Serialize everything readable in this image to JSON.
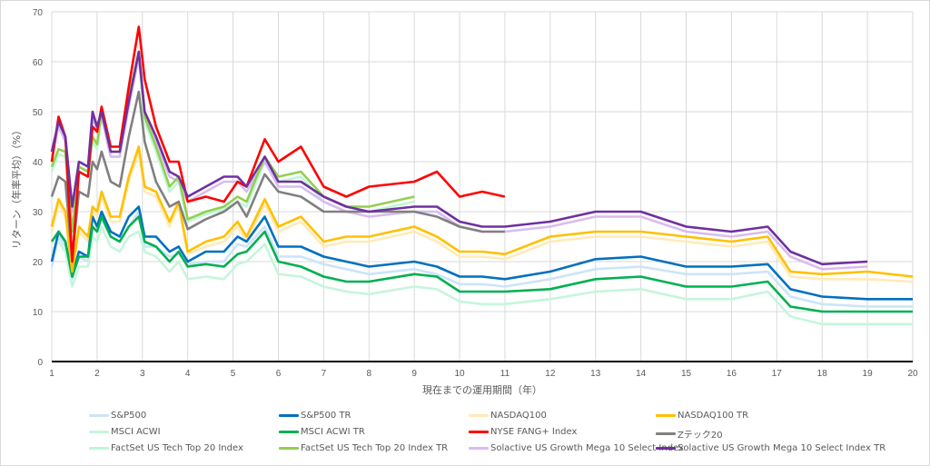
{
  "chart_data": {
    "type": "line",
    "title": "",
    "xlabel": "現在までの運用期間（年）",
    "ylabel": "リターン（年率平均）（%）",
    "xlim": [
      1,
      20
    ],
    "ylim": [
      0,
      70
    ],
    "xticks": [
      1,
      2,
      3,
      4,
      5,
      6,
      7,
      8,
      9,
      10,
      11,
      12,
      13,
      14,
      15,
      16,
      17,
      18,
      19,
      20
    ],
    "yticks": [
      0,
      10,
      20,
      30,
      40,
      50,
      60,
      70
    ],
    "grid": true,
    "legend_position": "bottom",
    "x": [
      1,
      1.15,
      1.3,
      1.45,
      1.6,
      1.8,
      1.9,
      2.0,
      2.1,
      2.3,
      2.5,
      2.7,
      2.92,
      3.05,
      3.3,
      3.6,
      3.8,
      4.0,
      4.4,
      4.8,
      5.1,
      5.3,
      5.7,
      6.0,
      6.5,
      7.0,
      7.5,
      8.0,
      9.0,
      9.5,
      10.0,
      10.5,
      11.0,
      12.0,
      13.0,
      14.0,
      15.0,
      16.0,
      16.8,
      17.3,
      18.0,
      19.0,
      20.0
    ],
    "series": [
      {
        "name": "S&P500",
        "color": "#cce4fa",
        "values": [
          19,
          25,
          23,
          16.5,
          21,
          20,
          27,
          26,
          28.5,
          25,
          24,
          27,
          30,
          23,
          23,
          21,
          21.5,
          19.5,
          20,
          20,
          23.5,
          23,
          27,
          21,
          21,
          19.5,
          18.5,
          17.5,
          18.5,
          17.5,
          15.5,
          15.5,
          15,
          16.5,
          18.5,
          19,
          17.5,
          17.5,
          18,
          13,
          11.5,
          11,
          11
        ]
      },
      {
        "name": "MSCI ACWI",
        "color": "#c6f5dc",
        "values": [
          22,
          24,
          22,
          15,
          19,
          19,
          25,
          24,
          27,
          23,
          22,
          25,
          26,
          22,
          21,
          18,
          20,
          16.5,
          17,
          16.5,
          19.5,
          20,
          23.5,
          17.5,
          17,
          15,
          14,
          13.5,
          15,
          14.5,
          12,
          11.5,
          11.5,
          12.5,
          14,
          14.5,
          12.5,
          12.5,
          14,
          9,
          7.5,
          7.5,
          7.5
        ]
      },
      {
        "name": "FactSet US Tech Top 20 Index",
        "color": "#bff7d6",
        "values": [
          38,
          41.5,
          41,
          25,
          38,
          37,
          44,
          42.5,
          49,
          41,
          41,
          52,
          61,
          48,
          42,
          34,
          36,
          28,
          29.5,
          30.5,
          32,
          31,
          40,
          36,
          37,
          32,
          30,
          30,
          32,
          null,
          null,
          null,
          null,
          null,
          null,
          null,
          null,
          null,
          null,
          null,
          null,
          null,
          null
        ]
      },
      {
        "name": "NASDAQ100",
        "color": "#ffeab8",
        "values": [
          26,
          31.5,
          29,
          17.5,
          26,
          24,
          30,
          29,
          33,
          28,
          28,
          36,
          42,
          34,
          33,
          27,
          31,
          21.5,
          23,
          24,
          27,
          24,
          31.5,
          26,
          28,
          23,
          24,
          24,
          26,
          24,
          21,
          21,
          20.5,
          24,
          25,
          25,
          24,
          23,
          24,
          17,
          16.5,
          16.5,
          16
        ]
      },
      {
        "name": "Solactive US Growth Mega 10 Select Index",
        "color": "#d8bcef",
        "values": [
          41,
          47,
          44,
          30,
          39,
          38,
          49,
          46,
          49,
          41,
          41,
          51,
          61,
          49,
          44,
          37,
          36,
          32,
          34,
          36,
          36,
          34,
          40,
          35,
          35,
          32,
          30,
          29,
          30,
          30,
          27,
          26,
          26,
          27,
          29,
          29,
          26,
          25,
          26,
          21,
          18.5,
          19,
          null
        ]
      },
      {
        "name": "S&P500 TR",
        "color": "#0070c0",
        "values": [
          20,
          26,
          24,
          17,
          22,
          21,
          29,
          27,
          30,
          26,
          25,
          29,
          31,
          25,
          25,
          22,
          23,
          20,
          22,
          22,
          25,
          24,
          29,
          23,
          23,
          21,
          20,
          19,
          20,
          19,
          17,
          17,
          16.5,
          18,
          20.5,
          21,
          19,
          19,
          19.5,
          14.5,
          13,
          12.5,
          12.5
        ]
      },
      {
        "name": "MSCI ACWI TR",
        "color": "#00b050",
        "values": [
          24,
          26,
          24,
          17,
          21,
          21,
          27,
          26,
          29,
          25,
          24,
          27,
          29,
          24,
          23,
          20,
          22,
          19,
          19.5,
          19,
          21.5,
          22,
          26,
          20,
          19,
          17,
          16,
          16,
          17.5,
          17,
          14,
          14,
          14,
          14.5,
          16.5,
          17,
          15,
          15,
          16,
          11,
          10,
          10,
          10
        ]
      },
      {
        "name": "NASDAQ100 TR",
        "color": "#ffc000",
        "values": [
          27,
          32.5,
          30,
          18,
          27,
          25,
          31,
          30,
          34,
          29,
          29,
          37,
          43,
          35,
          34,
          28,
          32,
          22,
          24,
          25,
          28,
          25,
          32.5,
          27,
          29,
          24,
          25,
          25,
          27,
          25,
          22,
          22,
          21.5,
          25,
          26,
          26,
          25,
          24,
          25,
          18,
          17.5,
          18,
          17
        ]
      },
      {
        "name": "Zテック20",
        "color": "#808080",
        "values": [
          33,
          37,
          36,
          20.5,
          34,
          33,
          40,
          38.5,
          42,
          36,
          35,
          45,
          54,
          44,
          36,
          31,
          32,
          26.5,
          28.5,
          30,
          32,
          29,
          37.5,
          34,
          33,
          30,
          30,
          30,
          30,
          29,
          27,
          26,
          26,
          null,
          null,
          null,
          null,
          null,
          null,
          null,
          null,
          null,
          null
        ]
      },
      {
        "name": "FactSet US Tech Top 20 Index TR",
        "color": "#92d050",
        "values": [
          39,
          42.5,
          42,
          26,
          39,
          38,
          45,
          43.5,
          50,
          42,
          42,
          53,
          62,
          49,
          43,
          35,
          37,
          28.5,
          30,
          31,
          33,
          32,
          41,
          37,
          38,
          33,
          31,
          31,
          33,
          null,
          null,
          null,
          null,
          null,
          null,
          null,
          null,
          null,
          null,
          null,
          null,
          null,
          null
        ]
      },
      {
        "name": "NYSE FANG+ Index",
        "color": "#ff0000",
        "values": [
          40,
          49,
          45,
          20,
          38,
          37,
          47,
          46,
          51,
          43,
          43,
          55,
          67,
          56.5,
          47,
          40,
          40,
          32,
          33,
          32,
          36,
          35,
          44.5,
          40,
          43,
          35,
          33,
          35,
          36,
          38,
          33,
          34,
          33,
          null,
          null,
          null,
          null,
          null,
          null,
          null,
          null,
          null,
          null
        ]
      },
      {
        "name": "Solactive US Growth Mega 10 Select Index TR",
        "color": "#7030a0",
        "values": [
          42,
          48,
          45,
          31,
          40,
          39,
          50,
          47,
          50,
          42,
          42,
          52,
          62,
          50,
          45,
          38,
          37,
          33,
          35,
          37,
          37,
          35,
          41,
          36,
          36,
          33,
          31,
          30,
          31,
          31,
          28,
          27,
          27,
          28,
          30,
          30,
          27,
          26,
          27,
          22,
          19.5,
          20,
          null
        ]
      }
    ]
  },
  "legend": [
    {
      "label": "S&P500",
      "color": "#cce4fa"
    },
    {
      "label": "S&P500 TR",
      "color": "#0070c0"
    },
    {
      "label": "NASDAQ100",
      "color": "#ffeab8"
    },
    {
      "label": "NASDAQ100 TR",
      "color": "#ffc000"
    },
    {
      "label": "MSCI ACWI",
      "color": "#c6f5dc"
    },
    {
      "label": "MSCI ACWI TR",
      "color": "#00b050"
    },
    {
      "label": "NYSE FANG+ Index",
      "color": "#ff0000"
    },
    {
      "label": "Zテック20",
      "color": "#808080"
    },
    {
      "label": "FactSet US Tech Top 20 Index",
      "color": "#bff7d6"
    },
    {
      "label": "FactSet US Tech Top 20 Index TR",
      "color": "#92d050"
    },
    {
      "label": "Solactive US Growth Mega 10 Select Index",
      "color": "#d8bcef"
    },
    {
      "label": "Solactive US Growth Mega 10 Select Index TR",
      "color": "#7030a0"
    }
  ]
}
